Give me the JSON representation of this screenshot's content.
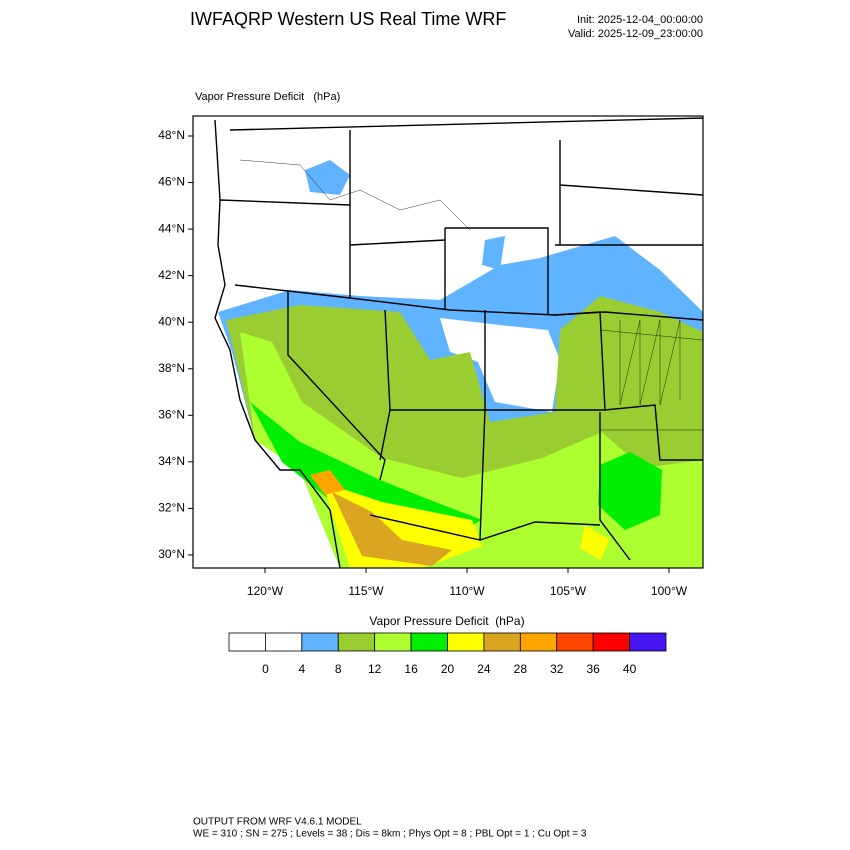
{
  "header": {
    "title": "IWFAQRP Western US Real Time WRF",
    "init": "Init: 2025-12-04_00:00:00",
    "valid": "Valid: 2025-12-09_23:00:00"
  },
  "map": {
    "field_label": "Vapor Pressure Deficit   (hPa)",
    "lat_labels": [
      "48°N",
      "46°N",
      "44°N",
      "42°N",
      "40°N",
      "38°N",
      "36°N",
      "34°N",
      "32°N",
      "30°N"
    ],
    "lon_labels": [
      "120°W",
      "115°W",
      "110°W",
      "105°W",
      "100°W"
    ]
  },
  "colorbar": {
    "title": "Vapor Pressure Deficit  (hPa)",
    "levels": [
      0,
      4,
      8,
      12,
      16,
      20,
      24,
      28,
      32,
      36,
      40
    ],
    "colors": [
      "#ffffff",
      "#ffffff",
      "#60b4ff",
      "#9acd32",
      "#adff2f",
      "#00ee00",
      "#ffff00",
      "#daa520",
      "#ffa500",
      "#ff4500",
      "#ff0000",
      "#4616f2"
    ]
  },
  "footer": {
    "line1": "OUTPUT FROM WRF V4.6.1 MODEL",
    "line2": "WE = 310 ; SN = 275 ; Levels = 38 ; Dis = 8km ; Phys Opt = 8 ; PBL Opt = 1 ; Cu Opt = 3"
  }
}
